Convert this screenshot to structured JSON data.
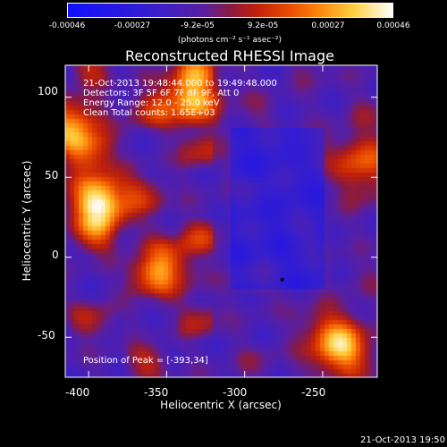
{
  "colorbar": {
    "labels": [
      "-0.00046",
      "-0.00027",
      "-9.2e-05",
      "9.2e-05",
      "0.00027",
      "0.00046"
    ],
    "units": "(photons cm⁻² s⁻¹ asec⁻²)"
  },
  "chart_data": {
    "type": "heatmap",
    "title": "Reconstructed RHESSI Image",
    "xlabel": "Heliocentric X (arcsec)",
    "ylabel": "Heliocentric Y (arcsec)",
    "xlim": [
      -415,
      -215
    ],
    "ylim": [
      -75,
      120
    ],
    "xticks": [
      -400,
      -350,
      -300,
      -250
    ],
    "yticks": [
      -50,
      0,
      50,
      100
    ],
    "clim": [
      -0.00046,
      0.00046
    ],
    "peak_position": [
      -393,
      34
    ],
    "bright_regions": [
      {
        "x": -393,
        "y": 34,
        "level": 0.00046
      },
      {
        "x": -410,
        "y": 80,
        "level": 0.0003
      },
      {
        "x": -335,
        "y": 100,
        "level": 0.00035
      },
      {
        "x": -240,
        "y": -55,
        "level": 0.00036
      },
      {
        "x": -350,
        "y": -5,
        "level": 0.0002
      },
      {
        "x": -225,
        "y": 60,
        "level": 0.00018
      }
    ]
  },
  "annotations": {
    "time_range": "21-Oct-2013 19:48:44.000 to 19:49:48.000",
    "detectors": "Detectors: 3F 5F 6F 7F 8F 9F, Att 0",
    "energy": "Energy Range: 12.0 - 25.0 keV",
    "clean": "Clean    Total counts: 1.65E+03",
    "peak": "Position of Peak = [-393,34]"
  },
  "timestamp": "21-Oct-2013 19:50"
}
